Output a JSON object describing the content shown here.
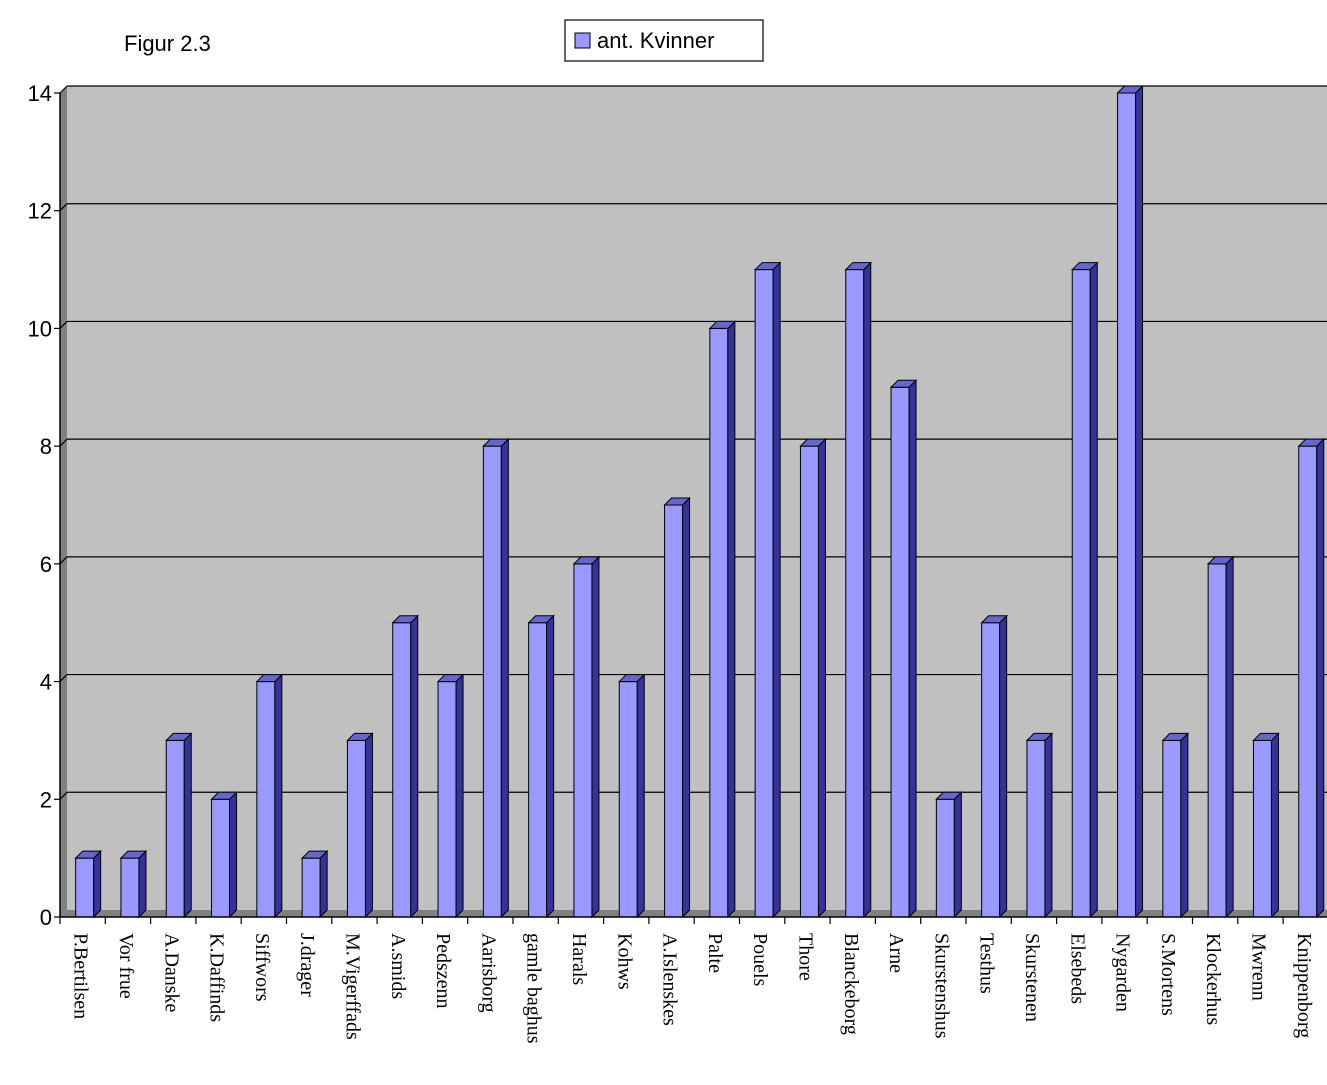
{
  "figure_label": "Figur 2.3",
  "colors": {
    "plot_background": "#c0c0c0",
    "bar_front": "#9999ff",
    "bar_side": "#333399",
    "bar_top": "#6666cc",
    "grid": "#000000"
  },
  "chart_data": {
    "type": "bar",
    "title": "",
    "xlabel": "",
    "ylabel": "",
    "ylim": [
      0,
      14
    ],
    "y_ticks": [
      0,
      2,
      4,
      6,
      8,
      10,
      12,
      14
    ],
    "grid": true,
    "legend_position": "top-center",
    "categories": [
      "P.Bertilsen",
      "Vor frue",
      "A.Danske",
      "K.Daffinds",
      "Siffwors",
      "J.drager",
      "M.Vigerffads",
      "A.smids",
      "Pedszenn",
      "Aarisborg",
      "gamle baghus",
      "Harals",
      "Kohws",
      "A.Islenskes",
      "Palte",
      "Pouels",
      "Thore",
      "Blanckeborg",
      "Arne",
      "Skurstenshus",
      "Testhus",
      "Skurstenen",
      "Elsebeds",
      "Nygarden",
      "S.Mortens",
      "Klockerhus",
      "Mwrenn",
      "Knippenborg"
    ],
    "series": [
      {
        "name": "ant. Kvinner",
        "values": [
          1,
          1,
          3,
          2,
          4,
          1,
          3,
          5,
          4,
          8,
          5,
          6,
          4,
          7,
          10,
          11,
          8,
          11,
          9,
          2,
          5,
          3,
          11,
          14,
          3,
          6,
          3,
          8
        ]
      }
    ]
  }
}
